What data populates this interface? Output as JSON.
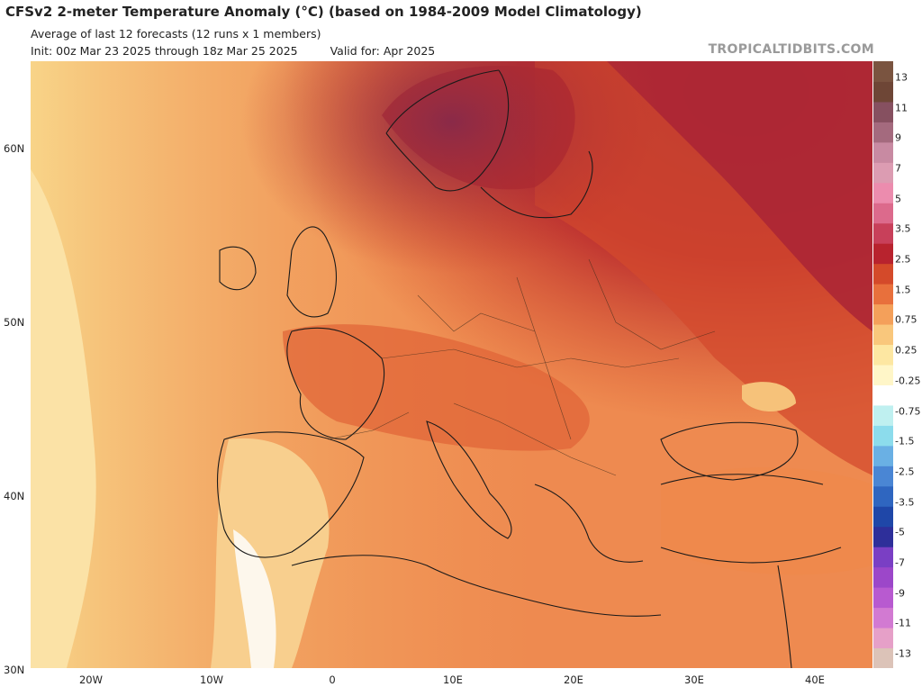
{
  "header": {
    "title": "CFSv2 2-meter Temperature Anomaly (°C) (based on 1984-2009 Model Climatology)",
    "subtitle": "Average of last 12 forecasts (12 runs x 1 members)",
    "init": "Init: 00z Mar 23 2025 through 18z Mar 25 2025",
    "valid": "Valid for: Apr 2025",
    "credit": "TROPICALTIDBITS.COM"
  },
  "map": {
    "lat_labels": [
      "60N",
      "50N",
      "40N",
      "30N"
    ],
    "lon_labels": [
      "20W",
      "10W",
      "0",
      "10E",
      "20E",
      "30E",
      "40E"
    ]
  },
  "colorbar": {
    "labels": [
      "13",
      "11",
      "9",
      "7",
      "5",
      "3.5",
      "2.5",
      "1.5",
      "0.75",
      "0.25",
      "-0.25",
      "-0.75",
      "-1.5",
      "-2.5",
      "-3.5",
      "-5",
      "-7",
      "-9",
      "-11",
      "-13"
    ],
    "colors": [
      "#dcc3b8",
      "#e6a0c8",
      "#d27ad2",
      "#b85ad0",
      "#9c47c9",
      "#7a3fc4",
      "#2e2f9a",
      "#1f47a8",
      "#2f66c0",
      "#4a86d4",
      "#6ab0e4",
      "#8cdcec",
      "#bff0f0",
      "#ffffff",
      "#fff6c8",
      "#fde7a2",
      "#f9c77c",
      "#f4a05a",
      "#e8703c",
      "#d44a2a",
      "#b8232e",
      "#c8405a",
      "#dc6a8c",
      "#ec8cae",
      "#dc9cb2",
      "#c88aa2",
      "#a46a7e",
      "#865060",
      "#6e4636",
      "#7a5440"
    ]
  }
}
